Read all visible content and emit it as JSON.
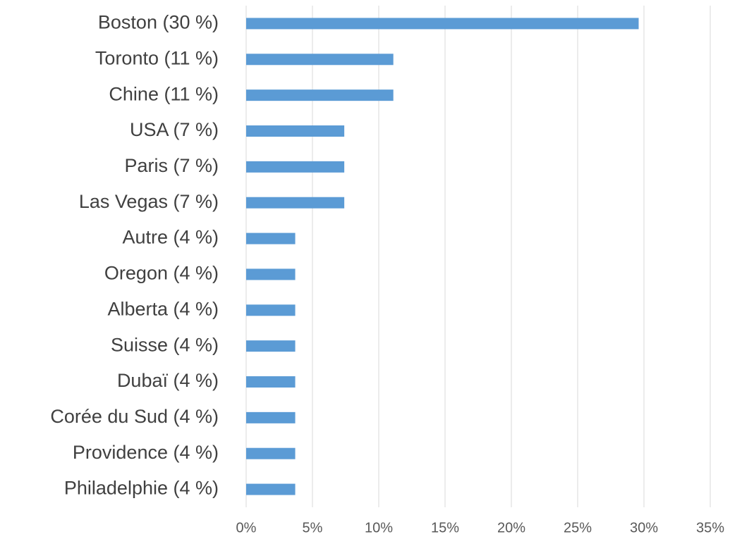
{
  "chart_data": {
    "type": "barh",
    "categories": [
      "Boston (30 %)",
      "Toronto (11 %)",
      "Chine (11 %)",
      "USA (7 %)",
      "Paris (7 %)",
      "Las Vegas (7 %)",
      "Autre (4 %)",
      "Oregon (4 %)",
      "Alberta (4 %)",
      "Suisse (4 %)",
      "Dubaï (4 %)",
      "Corée du Sud (4 %)",
      "Providence (4 %)",
      "Philadelphie (4 %)"
    ],
    "values": [
      29.6,
      11.1,
      11.1,
      7.4,
      7.4,
      7.4,
      3.7,
      3.7,
      3.7,
      3.7,
      3.7,
      3.7,
      3.7,
      3.7
    ],
    "color": "#5b9bd5",
    "xlim": [
      0,
      35
    ],
    "xticks": [
      {
        "value": 0,
        "label": "0%"
      },
      {
        "value": 5,
        "label": "5%"
      },
      {
        "value": 10,
        "label": "10%"
      },
      {
        "value": 15,
        "label": "15%"
      },
      {
        "value": 20,
        "label": "20%"
      },
      {
        "value": 25,
        "label": "25%"
      },
      {
        "value": 30,
        "label": "30%"
      },
      {
        "value": 35,
        "label": "35%"
      }
    ],
    "grid": true
  }
}
